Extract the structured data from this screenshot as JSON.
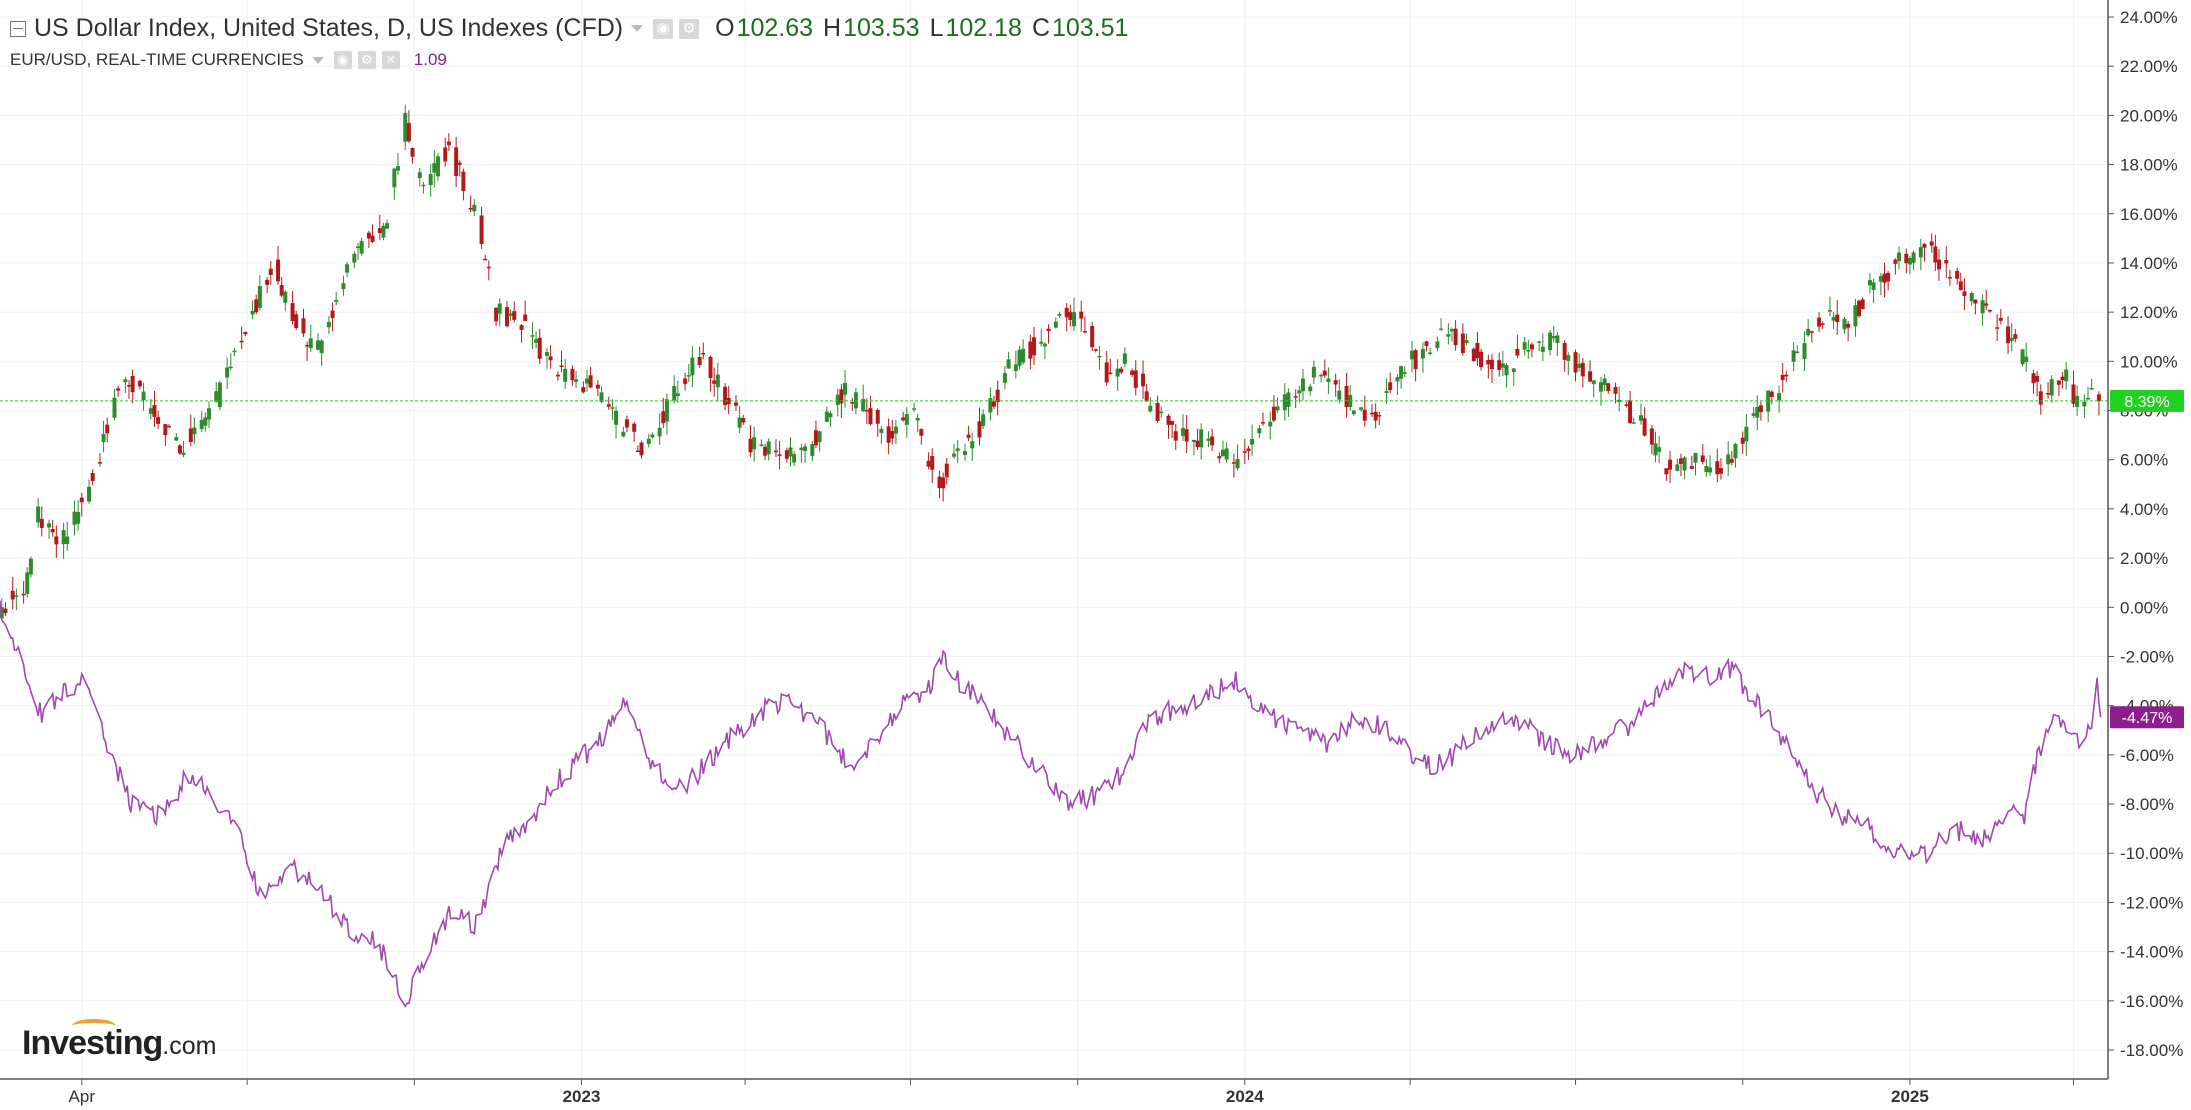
{
  "legend": {
    "primary": {
      "title": "US Dollar Index, United States, D, US Indexes (CFD)",
      "open_label": "O",
      "open": "102.63",
      "high_label": "H",
      "high": "103.53",
      "low_label": "L",
      "low": "102.18",
      "close_label": "C",
      "close": "103.51"
    },
    "secondary": {
      "title": "EUR/USD, REAL-TIME CURRENCIES",
      "value": "1.09"
    }
  },
  "logo": {
    "brand": "Investing",
    "suffix": ".com"
  },
  "colors": {
    "up_candle": "#2e8b2e",
    "down_candle": "#b21a1a",
    "eurusd_line": "#9e48b0",
    "last_price_line": "#22cc22",
    "primary_badge": "#21d121",
    "secondary_badge": "#8e1e8e",
    "grid": "#f1f1f1"
  },
  "icons": [
    "collapse-icon",
    "dropdown-caret-icon",
    "visibility-icon",
    "settings-icon",
    "close-icon"
  ],
  "chart_data": {
    "type": "line",
    "y_axis": {
      "ticks": [
        "24.00%",
        "22.00%",
        "20.00%",
        "18.00%",
        "16.00%",
        "14.00%",
        "12.00%",
        "10.00%",
        "8.00%",
        "6.00%",
        "4.00%",
        "2.00%",
        "0.00%",
        "-2.00%",
        "-4.00%",
        "-6.00%",
        "-8.00%",
        "-10.00%",
        "-12.00%",
        "-14.00%",
        "-16.00%",
        "-18.00%"
      ],
      "range": [
        -18,
        24
      ],
      "position": "right"
    },
    "x_axis": {
      "tick_labels": [
        {
          "label": "Apr",
          "date": "2022-04-01"
        },
        {
          "label": "2023",
          "date": "2023-01-01"
        },
        {
          "label": "2024",
          "date": "2024-01-01"
        },
        {
          "label": "2025",
          "date": "2025-01-01"
        }
      ],
      "minor_ticks": [
        "2022-07-01",
        "2022-10-01",
        "2023-04-01",
        "2023-07-01",
        "2023-10-01",
        "2024-04-01",
        "2024-07-01",
        "2024-10-01",
        "2025-04-01"
      ],
      "range": [
        "2022-02-15",
        "2025-04-20"
      ]
    },
    "grid": true,
    "series": [
      {
        "kind": "candlestick",
        "y_unit": "percent change",
        "last_value_label": "8.39%",
        "points": [
          [
            "2022-02-15",
            0.0
          ],
          [
            "2022-03-01",
            0.8
          ],
          [
            "2022-03-08",
            3.8
          ],
          [
            "2022-03-20",
            2.6
          ],
          [
            "2022-04-05",
            4.8
          ],
          [
            "2022-04-20",
            8.5
          ],
          [
            "2022-04-28",
            9.3
          ],
          [
            "2022-05-15",
            7.2
          ],
          [
            "2022-05-25",
            6.5
          ],
          [
            "2022-06-15",
            8.5
          ],
          [
            "2022-06-25",
            10.5
          ],
          [
            "2022-07-15",
            13.8
          ],
          [
            "2022-07-28",
            11.5
          ],
          [
            "2022-08-10",
            10.5
          ],
          [
            "2022-08-28",
            14.5
          ],
          [
            "2022-09-15",
            15.5
          ],
          [
            "2022-09-26",
            19.8
          ],
          [
            "2022-10-05",
            17.0
          ],
          [
            "2022-10-20",
            18.8
          ],
          [
            "2022-11-05",
            15.5
          ],
          [
            "2022-11-15",
            12.0
          ],
          [
            "2022-12-01",
            11.5
          ],
          [
            "2022-12-15",
            9.8
          ],
          [
            "2023-01-05",
            9.0
          ],
          [
            "2023-01-25",
            7.2
          ],
          [
            "2023-02-05",
            6.5
          ],
          [
            "2023-02-20",
            8.5
          ],
          [
            "2023-03-08",
            10.3
          ],
          [
            "2023-03-20",
            8.8
          ],
          [
            "2023-04-05",
            6.5
          ],
          [
            "2023-04-20",
            6.2
          ],
          [
            "2023-05-05",
            6.3
          ],
          [
            "2023-05-25",
            8.8
          ],
          [
            "2023-06-05",
            8.2
          ],
          [
            "2023-06-20",
            7.0
          ],
          [
            "2023-07-05",
            8.0
          ],
          [
            "2023-07-15",
            4.8
          ],
          [
            "2023-07-25",
            6.0
          ],
          [
            "2023-08-10",
            7.5
          ],
          [
            "2023-08-25",
            9.8
          ],
          [
            "2023-09-10",
            10.8
          ],
          [
            "2023-09-25",
            12.0
          ],
          [
            "2023-10-05",
            11.5
          ],
          [
            "2023-10-15",
            9.5
          ],
          [
            "2023-10-28",
            10.0
          ],
          [
            "2023-11-10",
            8.2
          ],
          [
            "2023-11-25",
            6.8
          ],
          [
            "2023-12-05",
            7.0
          ],
          [
            "2023-12-28",
            5.8
          ],
          [
            "2024-01-10",
            7.5
          ],
          [
            "2024-01-25",
            8.5
          ],
          [
            "2024-02-10",
            9.5
          ],
          [
            "2024-02-25",
            8.5
          ],
          [
            "2024-03-10",
            7.5
          ],
          [
            "2024-03-25",
            9.5
          ],
          [
            "2024-04-10",
            10.5
          ],
          [
            "2024-04-20",
            11.2
          ],
          [
            "2024-05-05",
            10.5
          ],
          [
            "2024-05-20",
            9.5
          ],
          [
            "2024-06-05",
            10.5
          ],
          [
            "2024-06-20",
            10.8
          ],
          [
            "2024-07-05",
            9.5
          ],
          [
            "2024-07-20",
            8.8
          ],
          [
            "2024-08-05",
            7.5
          ],
          [
            "2024-08-20",
            5.8
          ],
          [
            "2024-09-05",
            6.0
          ],
          [
            "2024-09-20",
            5.5
          ],
          [
            "2024-10-05",
            7.5
          ],
          [
            "2024-10-20",
            9.0
          ],
          [
            "2024-11-05",
            11.0
          ],
          [
            "2024-11-15",
            12.0
          ],
          [
            "2024-11-28",
            11.5
          ],
          [
            "2024-12-10",
            13.0
          ],
          [
            "2024-12-28",
            14.2
          ],
          [
            "2025-01-10",
            14.8
          ],
          [
            "2025-01-20",
            13.8
          ],
          [
            "2025-02-05",
            12.5
          ],
          [
            "2025-02-20",
            11.5
          ],
          [
            "2025-03-05",
            10.0
          ],
          [
            "2025-03-15",
            8.5
          ],
          [
            "2025-03-28",
            9.5
          ],
          [
            "2025-04-05",
            7.8
          ],
          [
            "2025-04-10",
            8.5
          ],
          [
            "2025-04-15",
            8.39
          ]
        ]
      },
      {
        "kind": "line",
        "y_unit": "percent change",
        "last_value_label": "-4.47%",
        "points": [
          [
            "2022-02-15",
            0.0
          ],
          [
            "2022-03-01",
            -2.5
          ],
          [
            "2022-03-10",
            -4.5
          ],
          [
            "2022-03-20",
            -3.5
          ],
          [
            "2022-04-01",
            -3.0
          ],
          [
            "2022-04-15",
            -5.5
          ],
          [
            "2022-04-28",
            -8.0
          ],
          [
            "2022-05-15",
            -8.5
          ],
          [
            "2022-05-28",
            -7.0
          ],
          [
            "2022-06-10",
            -7.5
          ],
          [
            "2022-06-25",
            -9.0
          ],
          [
            "2022-07-10",
            -12.0
          ],
          [
            "2022-07-25",
            -10.5
          ],
          [
            "2022-08-10",
            -11.5
          ],
          [
            "2022-08-25",
            -13.0
          ],
          [
            "2022-09-10",
            -13.5
          ],
          [
            "2022-09-26",
            -16.0
          ],
          [
            "2022-10-05",
            -14.5
          ],
          [
            "2022-10-20",
            -12.5
          ],
          [
            "2022-11-05",
            -13.0
          ],
          [
            "2022-11-20",
            -9.5
          ],
          [
            "2022-12-05",
            -8.5
          ],
          [
            "2022-12-20",
            -7.0
          ],
          [
            "2023-01-10",
            -5.5
          ],
          [
            "2023-01-25",
            -4.0
          ],
          [
            "2023-02-10",
            -6.5
          ],
          [
            "2023-02-25",
            -7.5
          ],
          [
            "2023-03-15",
            -6.0
          ],
          [
            "2023-04-05",
            -4.5
          ],
          [
            "2023-04-20",
            -3.8
          ],
          [
            "2023-05-10",
            -4.5
          ],
          [
            "2023-05-28",
            -6.5
          ],
          [
            "2023-06-10",
            -5.5
          ],
          [
            "2023-06-25",
            -4.0
          ],
          [
            "2023-07-10",
            -3.5
          ],
          [
            "2023-07-18",
            -2.0
          ],
          [
            "2023-07-28",
            -3.0
          ],
          [
            "2023-08-15",
            -4.5
          ],
          [
            "2023-08-28",
            -5.5
          ],
          [
            "2023-09-15",
            -7.0
          ],
          [
            "2023-09-28",
            -8.0
          ],
          [
            "2023-10-15",
            -7.5
          ],
          [
            "2023-10-28",
            -6.5
          ],
          [
            "2023-11-10",
            -4.5
          ],
          [
            "2023-11-28",
            -4.0
          ],
          [
            "2023-12-10",
            -3.5
          ],
          [
            "2023-12-28",
            -3.0
          ],
          [
            "2024-01-15",
            -4.5
          ],
          [
            "2024-02-01",
            -5.0
          ],
          [
            "2024-02-15",
            -5.5
          ],
          [
            "2024-03-01",
            -4.5
          ],
          [
            "2024-03-20",
            -5.0
          ],
          [
            "2024-04-10",
            -6.5
          ],
          [
            "2024-04-25",
            -6.0
          ],
          [
            "2024-05-10",
            -5.0
          ],
          [
            "2024-05-28",
            -4.5
          ],
          [
            "2024-06-15",
            -5.5
          ],
          [
            "2024-06-28",
            -6.0
          ],
          [
            "2024-07-15",
            -5.5
          ],
          [
            "2024-08-05",
            -4.5
          ],
          [
            "2024-08-20",
            -3.0
          ],
          [
            "2024-09-01",
            -2.5
          ],
          [
            "2024-09-15",
            -3.0
          ],
          [
            "2024-09-25",
            -2.5
          ],
          [
            "2024-10-10",
            -4.0
          ],
          [
            "2024-10-25",
            -5.5
          ],
          [
            "2024-11-10",
            -7.5
          ],
          [
            "2024-11-25",
            -8.5
          ],
          [
            "2024-12-10",
            -9.0
          ],
          [
            "2024-12-25",
            -10.0
          ],
          [
            "2025-01-10",
            -10.0
          ],
          [
            "2025-01-25",
            -9.0
          ],
          [
            "2025-02-10",
            -9.5
          ],
          [
            "2025-02-25",
            -8.0
          ],
          [
            "2025-03-05",
            -8.5
          ],
          [
            "2025-03-12",
            -6.0
          ],
          [
            "2025-03-20",
            -4.5
          ],
          [
            "2025-04-01",
            -5.5
          ],
          [
            "2025-04-10",
            -5.0
          ],
          [
            "2025-04-14",
            -3.2
          ],
          [
            "2025-04-16",
            -4.47
          ]
        ]
      }
    ]
  }
}
